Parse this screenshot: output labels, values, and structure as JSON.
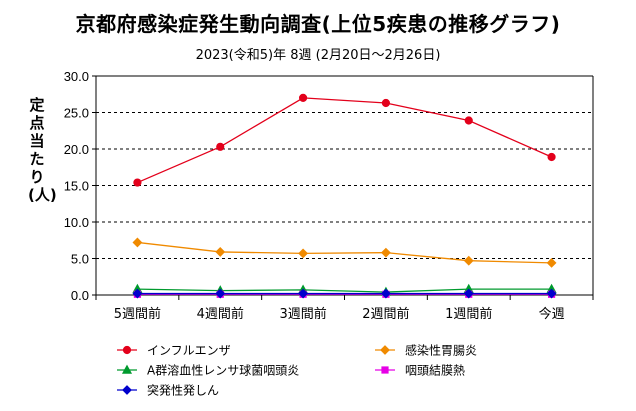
{
  "chart_data": {
    "type": "line",
    "title": "京都府感染症発生動向調査(上位5疾患の推移グラフ)",
    "subtitle": "2023(令和5)年 8週 (2月20日～2月26日)",
    "ylabel": "定点当たり (人)",
    "xlabel": "",
    "categories": [
      "5週間前",
      "4週間前",
      "3週間前",
      "2週間前",
      "1週間前",
      "今週"
    ],
    "ylim": [
      0,
      30
    ],
    "yticks": [
      "0.0",
      "5.0",
      "10.0",
      "15.0",
      "20.0",
      "25.0",
      "30.0"
    ],
    "grid": "horizontal-dashed",
    "legend_position": "bottom",
    "series": [
      {
        "name": "インフルエンザ",
        "values": [
          15.4,
          20.3,
          27.0,
          26.3,
          23.9,
          18.9
        ],
        "color": "#e3001b",
        "marker": "circle"
      },
      {
        "name": "感染性胃腸炎",
        "values": [
          7.2,
          5.9,
          5.7,
          5.8,
          4.7,
          4.4
        ],
        "color": "#f08a00",
        "marker": "diamond"
      },
      {
        "name": "A群溶血性レンサ球菌咽頭炎",
        "values": [
          0.8,
          0.6,
          0.7,
          0.4,
          0.8,
          0.8
        ],
        "color": "#009a2e",
        "marker": "triangle"
      },
      {
        "name": "咽頭結膜熱",
        "values": [
          0.1,
          0.1,
          0.1,
          0.1,
          0.1,
          0.1
        ],
        "color": "#e600e6",
        "marker": "square"
      },
      {
        "name": "突発性発しん",
        "values": [
          0.2,
          0.2,
          0.2,
          0.2,
          0.2,
          0.2
        ],
        "color": "#0000cc",
        "marker": "diamond"
      }
    ]
  }
}
